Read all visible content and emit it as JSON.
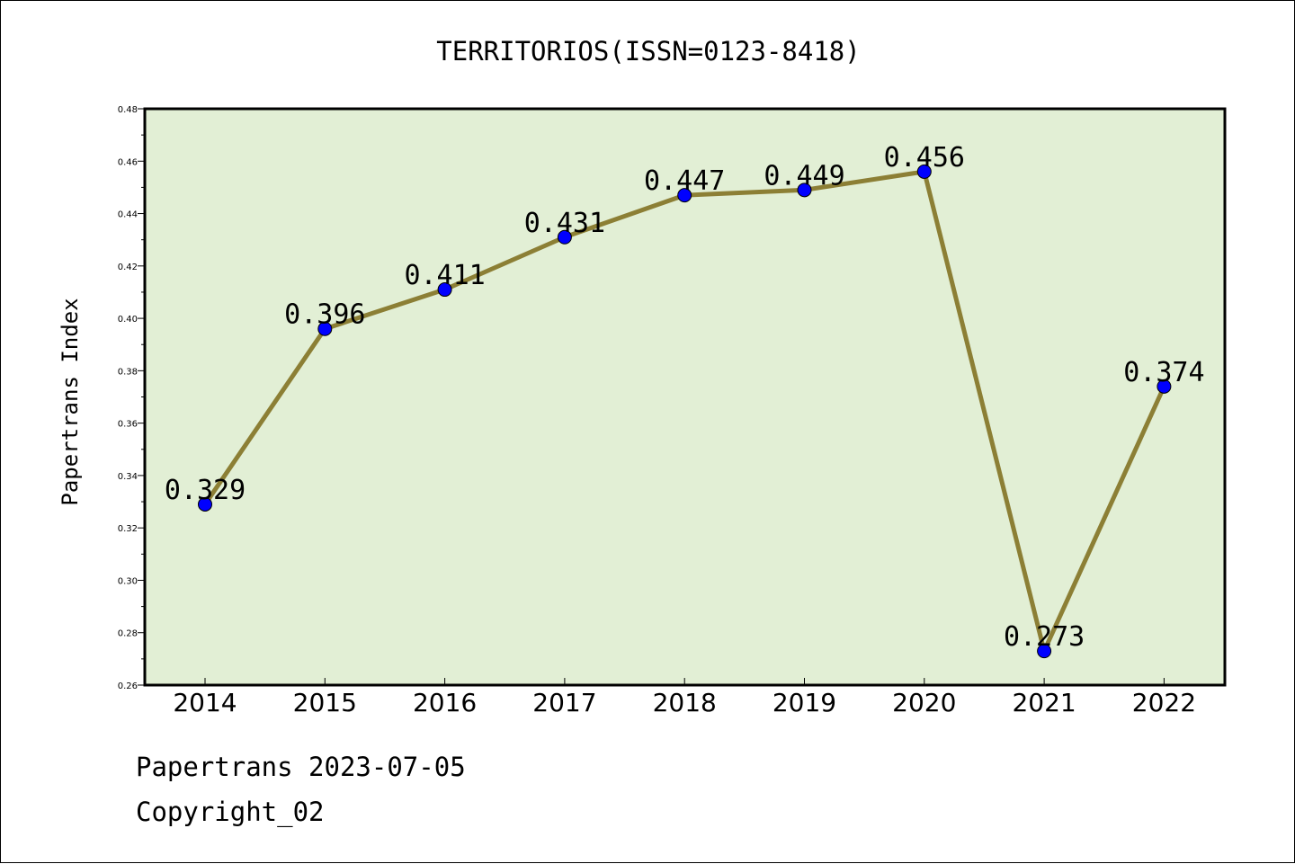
{
  "chart_data": {
    "type": "line",
    "title": "TERRITORIOS(ISSN=0123-8418)",
    "ylabel": "Papertrans Index",
    "xlabel": "",
    "categories": [
      "2014",
      "2015",
      "2016",
      "2017",
      "2018",
      "2019",
      "2020",
      "2021",
      "2022"
    ],
    "series": [
      {
        "values": [
          0.329,
          0.396,
          0.411,
          0.431,
          0.447,
          0.449,
          0.456,
          0.273,
          0.374
        ]
      }
    ],
    "data_labels": [
      "0.329",
      "0.396",
      "0.411",
      "0.431",
      "0.447",
      "0.449",
      "0.456",
      "0.273",
      "0.374"
    ],
    "ylim": [
      0.26,
      0.48
    ],
    "yticks": [
      "0.26",
      "0.28",
      "0.30",
      "0.32",
      "0.34",
      "0.36",
      "0.38",
      "0.40",
      "0.42",
      "0.44",
      "0.46",
      "0.48"
    ],
    "grid": false,
    "colors": {
      "plot_background": "#e2efd5",
      "line": "#8c7f35",
      "marker": "#0000ff"
    }
  },
  "footer": {
    "source": "Papertrans 2023-07-05",
    "copyright": "Copyright_02"
  }
}
